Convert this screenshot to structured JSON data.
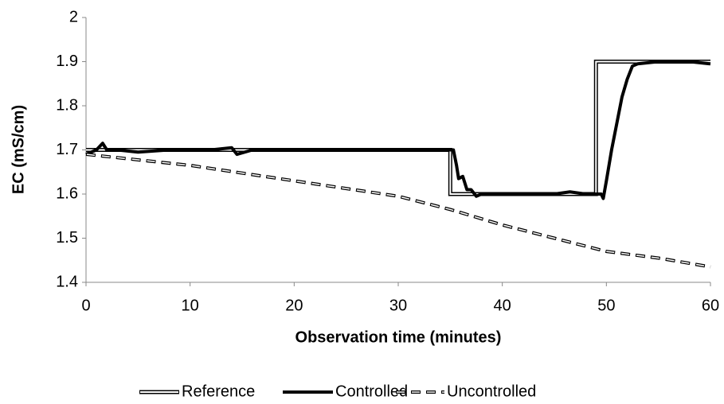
{
  "chart_data": {
    "type": "line",
    "x_label": "Observation time (minutes)",
    "y_label": "EC (mS/cm)",
    "xlim": [
      0,
      60
    ],
    "xticks": [
      0,
      10,
      20,
      30,
      40,
      50,
      60
    ],
    "ylim": [
      1.4,
      2
    ],
    "yticks": [
      1.4,
      1.5,
      1.6,
      1.7,
      1.8,
      1.9,
      2
    ],
    "grid": false,
    "legend": "bottom",
    "series": [
      {
        "name": "Reference",
        "color": "#000000",
        "line_style": "double",
        "x": [
          0,
          35,
          35,
          49,
          49,
          60
        ],
        "values": [
          1.7,
          1.7,
          1.6,
          1.6,
          1.9,
          1.9
        ]
      },
      {
        "name": "Controlled",
        "color": "#000000",
        "line_style": "solid",
        "x": [
          0,
          1,
          1.6,
          2,
          3,
          5,
          8,
          10,
          12,
          14,
          14.5,
          16,
          20,
          24,
          26,
          28,
          30,
          33,
          34,
          35.3,
          35.6,
          35.8,
          36.2,
          36.6,
          37,
          37.5,
          38,
          40,
          42,
          45,
          46.5,
          48,
          49.5,
          49.7,
          50,
          50.5,
          51,
          51.5,
          52,
          52.5,
          53,
          55,
          58,
          60
        ],
        "values": [
          1.69,
          1.7,
          1.715,
          1.7,
          1.7,
          1.695,
          1.7,
          1.7,
          1.7,
          1.705,
          1.69,
          1.7,
          1.7,
          1.7,
          1.7,
          1.7,
          1.7,
          1.7,
          1.7,
          1.7,
          1.665,
          1.635,
          1.64,
          1.61,
          1.61,
          1.595,
          1.6,
          1.6,
          1.6,
          1.6,
          1.605,
          1.6,
          1.6,
          1.59,
          1.63,
          1.7,
          1.76,
          1.82,
          1.86,
          1.89,
          1.895,
          1.9,
          1.9,
          1.895
        ]
      },
      {
        "name": "Uncontrolled",
        "color": "#000000",
        "line_style": "dashed",
        "x": [
          0,
          10,
          20,
          30,
          35,
          40,
          45,
          50,
          55,
          60
        ],
        "values": [
          1.69,
          1.665,
          1.63,
          1.595,
          1.565,
          1.53,
          1.5,
          1.47,
          1.455,
          1.435
        ]
      }
    ]
  }
}
